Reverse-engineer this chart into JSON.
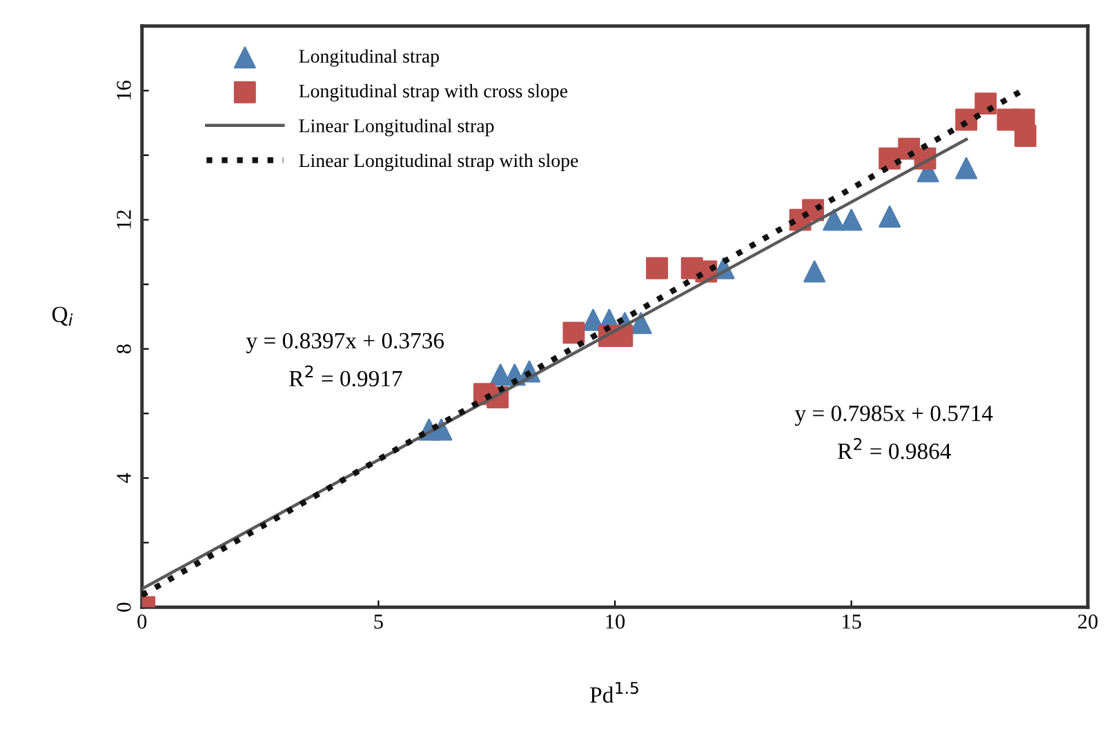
{
  "chart_data": {
    "type": "scatter",
    "xlabel": "Pd$^{1.5}$",
    "ylabel": "Q$_{i}$",
    "xlim": [
      0,
      20
    ],
    "xticks": [
      0,
      5,
      10,
      15,
      20
    ],
    "ylim": [
      0,
      18
    ],
    "yticks": [
      0,
      {
        "value": 2,
        "label": null
      },
      4,
      {
        "value": 6,
        "label": null
      },
      8,
      {
        "value": 10,
        "label": null
      },
      12,
      {
        "value": 14,
        "label": null
      },
      16
    ],
    "grid": false,
    "legend": "top left",
    "series": [
      {
        "name": "Longitudinal strap",
        "marker": "triangle",
        "color": "#4f7fb0",
        "x": [
          6.07,
          6.33,
          7.58,
          7.88,
          8.19,
          9.54,
          9.88,
          10.21,
          10.55,
          12.3,
          14.22,
          14.63,
          15.0,
          15.81,
          16.62,
          17.43
        ],
        "values": [
          5.5,
          5.5,
          7.2,
          7.2,
          7.3,
          8.9,
          8.9,
          8.8,
          8.8,
          10.5,
          10.4,
          12.0,
          12.0,
          12.1,
          13.5,
          13.6
        ]
      },
      {
        "name": "Longitudinal strap with cross slope",
        "marker": "square",
        "color": "#c0504d",
        "x": [
          0.05,
          7.24,
          7.52,
          9.13,
          9.88,
          10.15,
          10.89,
          11.63,
          11.93,
          13.92,
          14.19,
          15.81,
          16.22,
          16.56,
          17.43,
          17.84,
          18.31,
          18.65,
          18.68
        ],
        "values": [
          0.0,
          6.6,
          6.5,
          8.5,
          8.4,
          8.4,
          10.5,
          10.5,
          10.4,
          12.0,
          12.3,
          13.9,
          14.2,
          13.9,
          15.1,
          15.6,
          15.1,
          15.1,
          14.6
        ]
      },
      {
        "name": "Linear Longitudinal strap",
        "type": "line",
        "line_style": "solid",
        "color": "#5a5a5a",
        "x": [
          0,
          17.43
        ],
        "values": [
          0.57,
          14.49
        ]
      },
      {
        "name": "Linear Longitudinal strap with slope",
        "type": "line",
        "line_style": "dotted",
        "color": "#111111",
        "x": [
          0,
          18.68
        ],
        "values": [
          0.37,
          16.06
        ]
      }
    ],
    "annotations": [
      "y = 0.8397x + 0.3736",
      "R$^{2}$ = 0.9917",
      "y = 0.7985x + 0.5714",
      "R$^{2}$ = 0.9864"
    ]
  }
}
